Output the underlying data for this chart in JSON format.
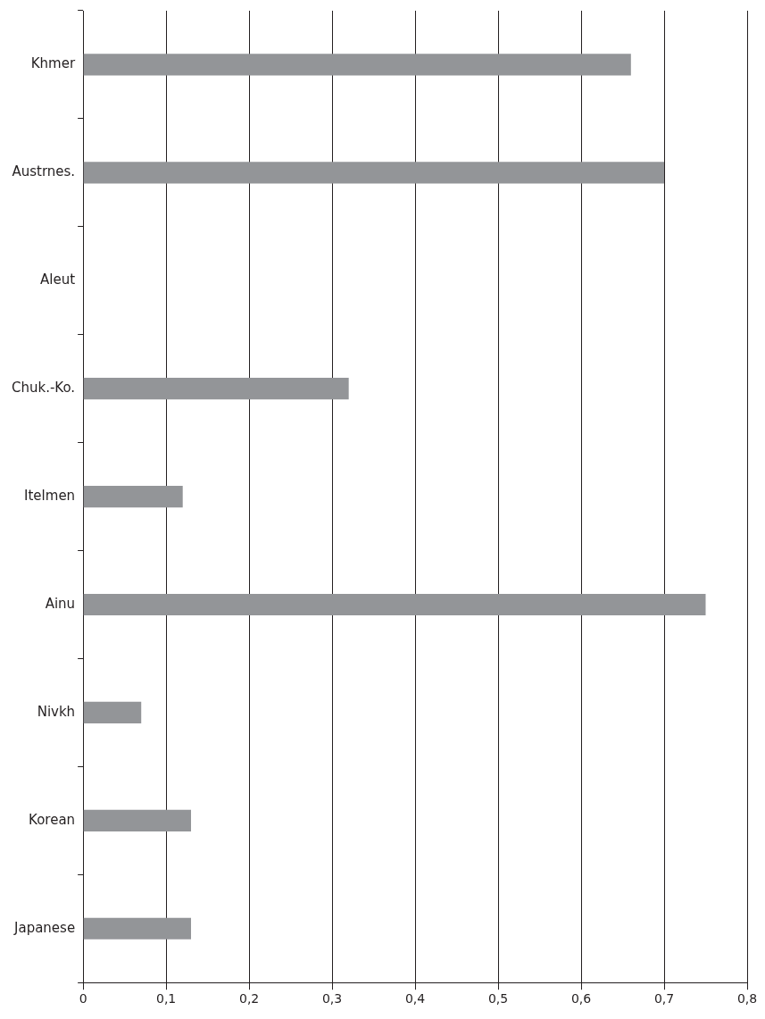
{
  "chart_data": {
    "type": "bar",
    "orientation": "horizontal",
    "categories": [
      "Khmer",
      "Austrnes.",
      "Aleut",
      "Chuk.-Ko.",
      "Itelmen",
      "Ainu",
      "Nivkh",
      "Korean",
      "Japanese"
    ],
    "values": [
      0.66,
      0.7,
      0,
      0.32,
      0.12,
      0.75,
      0.07,
      0.13,
      0.13
    ],
    "color": "#939598",
    "xlim": [
      0,
      0.8
    ],
    "xticks": [
      0,
      {
        "value": 0.1,
        "label": "0,1"
      },
      {
        "value": 0.2,
        "label": "0,2"
      },
      {
        "value": 0.3,
        "label": "0,3"
      },
      {
        "value": 0.4,
        "label": "0,4"
      },
      {
        "value": 0.5,
        "label": "0,5"
      },
      {
        "value": 0.6,
        "label": "0,6"
      },
      {
        "value": 0.7,
        "label": "0,7"
      },
      {
        "value": 0.8,
        "label": "0,8"
      }
    ],
    "grid": "x",
    "legend": false
  }
}
